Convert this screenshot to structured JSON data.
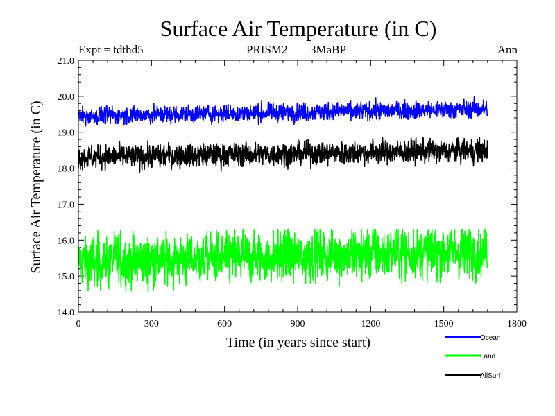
{
  "chart_data": {
    "type": "line",
    "title": "Surface Air Temperature (in C)",
    "subtitle_left": "Expt = tdthd5",
    "subtitle_center_1": "PRISM2",
    "subtitle_center_2": "3MaBP",
    "subtitle_right": "Ann",
    "xlabel": "Time (in years since start)",
    "ylabel": "Surface Air Temperature (in C)",
    "xlim": [
      0,
      1800
    ],
    "ylim": [
      14.0,
      21.0
    ],
    "x_ticks": [
      "0",
      "300",
      "600",
      "900",
      "1200",
      "1500",
      "1800"
    ],
    "y_ticks": [
      "14.0",
      "15.0",
      "16.0",
      "17.0",
      "18.0",
      "19.0",
      "20.0",
      "21.0"
    ],
    "n_years": 1680,
    "series": [
      {
        "name": "Ocean",
        "color": "#0000ff",
        "start": 19.45,
        "end": 19.65,
        "amplitude": 0.12,
        "min": 19.05,
        "max": 20.0
      },
      {
        "name": "Land",
        "color": "#00ff00",
        "start": 15.4,
        "end": 15.7,
        "amplitude": 0.35,
        "min": 14.55,
        "max": 16.3
      },
      {
        "name": "AllSurf",
        "color": "#000000",
        "start": 18.3,
        "end": 18.5,
        "amplitude": 0.16,
        "min": 17.8,
        "max": 18.9
      }
    ]
  }
}
